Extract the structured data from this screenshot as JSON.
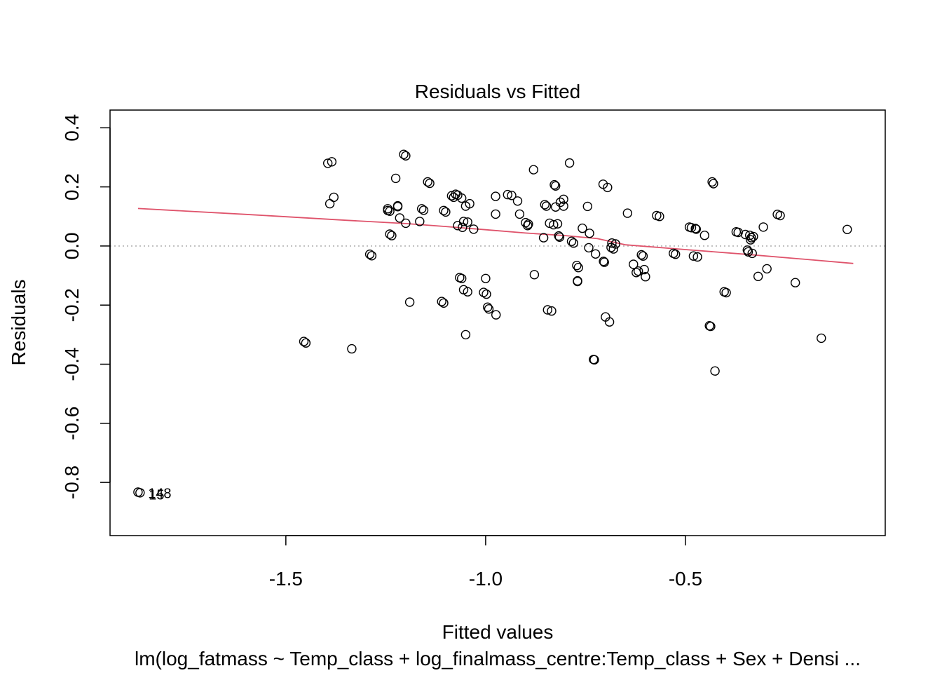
{
  "chart_data": {
    "type": "scatter",
    "title": "Residuals vs Fitted",
    "xlabel": "Fitted values",
    "ylabel": "Residuals",
    "subtitle": "lm(log_fatmass ~ Temp_class + log_finalmass_centre:Temp_class + Sex + Densi ...",
    "xlim": [
      -1.94,
      0.0
    ],
    "ylim": [
      -0.98,
      0.46
    ],
    "x_ticks": [
      -1.5,
      -1.0,
      -0.5
    ],
    "x_tick_labels": [
      "-1.5",
      "-1.0",
      "-0.5"
    ],
    "y_ticks": [
      -0.8,
      -0.6,
      -0.4,
      -0.2,
      0.0,
      0.2,
      0.4
    ],
    "y_tick_labels": [
      "-0.8",
      "-0.6",
      "-0.4",
      "-0.2",
      "0.0",
      "0.2",
      "0.4"
    ],
    "reference_line": {
      "y": 0.0,
      "style": "dotted",
      "color": "#bebebe"
    },
    "smooth_line": {
      "color": "#df536b",
      "x": [
        -1.87,
        -1.6,
        -1.35,
        -1.2,
        -1.1,
        -1.0,
        -0.9,
        -0.8,
        -0.72,
        -0.65,
        -0.5,
        -0.35,
        -0.2,
        -0.08
      ],
      "y": [
        0.127,
        0.107,
        0.087,
        0.076,
        0.066,
        0.055,
        0.044,
        0.035,
        0.025,
        0.004,
        -0.012,
        -0.028,
        -0.045,
        -0.059
      ]
    },
    "points": {
      "x": [
        -1.87,
        -1.865,
        -1.455,
        -1.45,
        -1.39,
        -1.385,
        -1.395,
        -1.38,
        -1.335,
        -1.29,
        -1.285,
        -1.245,
        -1.24,
        -1.235,
        -1.245,
        -1.24,
        -1.225,
        -1.22,
        -1.215,
        -1.22,
        -1.205,
        -1.2,
        -1.2,
        -1.19,
        -1.165,
        -1.16,
        -1.155,
        -1.145,
        -1.14,
        -1.11,
        -1.105,
        -1.105,
        -1.1,
        -1.085,
        -1.08,
        -1.075,
        -1.07,
        -1.07,
        -1.065,
        -1.06,
        -1.06,
        -1.058,
        -1.055,
        -1.055,
        -1.05,
        -1.045,
        -1.045,
        -1.05,
        -1.04,
        -1.03,
        -1.005,
        -1.0,
        -0.998,
        -0.995,
        -0.992,
        -0.975,
        -0.975,
        -0.974,
        -0.945,
        -0.935,
        -0.92,
        -0.915,
        -0.9,
        -0.895,
        -0.893,
        -0.88,
        -0.878,
        -0.855,
        -0.852,
        -0.848,
        -0.845,
        -0.84,
        -0.835,
        -0.83,
        -0.828,
        -0.825,
        -0.825,
        -0.82,
        -0.817,
        -0.815,
        -0.813,
        -0.805,
        -0.805,
        -0.79,
        -0.785,
        -0.78,
        -0.772,
        -0.77,
        -0.77,
        -0.768,
        -0.758,
        -0.745,
        -0.742,
        -0.74,
        -0.73,
        -0.728,
        -0.725,
        -0.706,
        -0.705,
        -0.703,
        -0.7,
        -0.695,
        -0.69,
        -0.686,
        -0.684,
        -0.68,
        -0.675,
        -0.645,
        -0.63,
        -0.623,
        -0.618,
        -0.61,
        -0.606,
        -0.603,
        -0.6,
        -0.572,
        -0.565,
        -0.53,
        -0.525,
        -0.49,
        -0.485,
        -0.48,
        -0.475,
        -0.473,
        -0.47,
        -0.452,
        -0.44,
        -0.437,
        -0.433,
        -0.43,
        -0.426,
        -0.403,
        -0.398,
        -0.373,
        -0.368,
        -0.35,
        -0.345,
        -0.343,
        -0.339,
        -0.337,
        -0.335,
        -0.333,
        -0.33,
        -0.318,
        -0.305,
        -0.296,
        -0.27,
        -0.263,
        -0.225,
        -0.16,
        -0.095
      ],
      "y": [
        -0.833,
        -0.835,
        -0.323,
        -0.328,
        0.143,
        0.285,
        0.28,
        0.165,
        -0.348,
        -0.028,
        -0.033,
        0.126,
        0.04,
        0.035,
        0.12,
        0.118,
        0.229,
        0.136,
        0.095,
        0.133,
        0.31,
        0.305,
        0.077,
        -0.19,
        0.083,
        0.126,
        0.121,
        0.217,
        0.212,
        -0.188,
        -0.193,
        0.12,
        0.115,
        0.17,
        0.165,
        0.175,
        0.172,
        0.069,
        -0.107,
        -0.11,
        0.162,
        0.063,
        0.083,
        -0.148,
        -0.3,
        0.081,
        -0.155,
        0.135,
        0.143,
        0.057,
        -0.157,
        -0.11,
        -0.163,
        -0.207,
        -0.213,
        0.108,
        0.168,
        -0.233,
        0.174,
        0.171,
        0.152,
        0.108,
        0.079,
        0.069,
        0.074,
        0.258,
        -0.097,
        0.028,
        0.14,
        0.135,
        -0.216,
        0.077,
        -0.22,
        0.072,
        0.207,
        0.203,
        0.132,
        0.075,
        0.034,
        0.03,
        0.148,
        0.158,
        0.135,
        0.281,
        0.016,
        0.01,
        -0.066,
        -0.118,
        -0.12,
        -0.073,
        0.06,
        0.134,
        -0.006,
        0.043,
        -0.384,
        -0.385,
        -0.027,
        0.209,
        -0.052,
        -0.055,
        -0.24,
        0.198,
        -0.257,
        -0.005,
        0.01,
        -0.01,
        0.007,
        0.111,
        -0.062,
        -0.09,
        -0.085,
        -0.03,
        -0.034,
        -0.08,
        -0.104,
        0.103,
        0.1,
        -0.025,
        -0.028,
        0.064,
        0.062,
        -0.034,
        0.059,
        0.057,
        -0.037,
        0.036,
        -0.27,
        -0.272,
        0.217,
        0.211,
        -0.423,
        -0.155,
        -0.158,
        0.048,
        0.046,
        0.039,
        -0.014,
        -0.02,
        0.036,
        0.021,
        0.028,
        -0.025,
        0.032,
        -0.103,
        0.064,
        -0.077,
        0.107,
        0.103,
        -0.124,
        -0.312,
        0.056
      ]
    },
    "point_labels": [
      {
        "text": "148",
        "x": -1.845,
        "y": -0.853
      },
      {
        "text": "15",
        "x": -1.843,
        "y": -0.858
      }
    ],
    "grid": false,
    "box": true
  }
}
